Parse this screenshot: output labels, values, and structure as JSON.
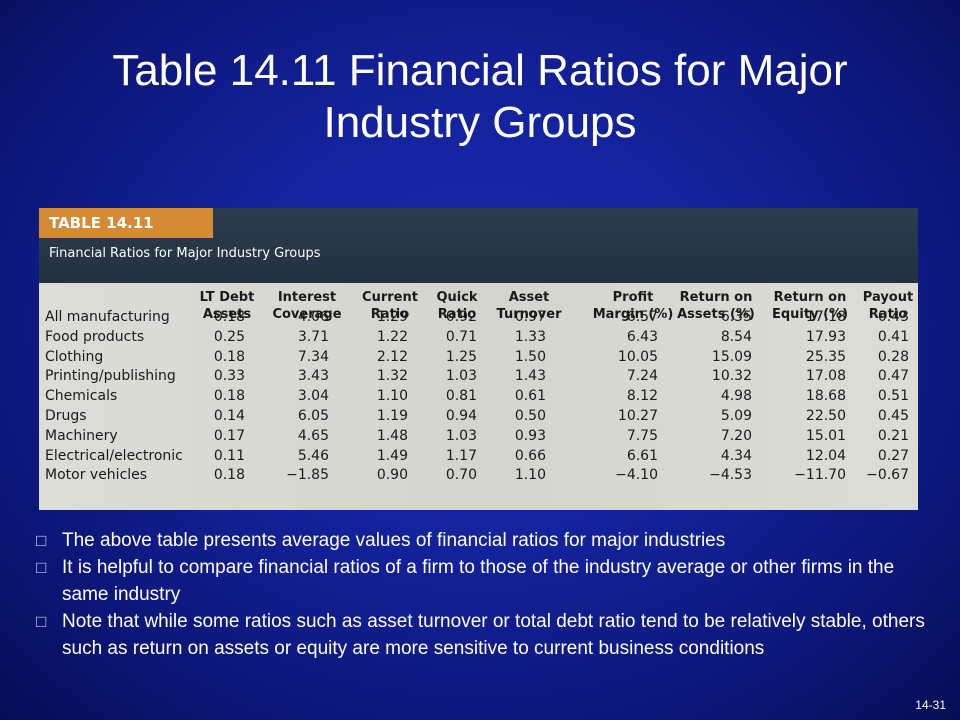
{
  "slide": {
    "title_line1": "Table 14.11 Financial Ratios for Major",
    "title_line2": "Industry Groups",
    "page_number": "14-31"
  },
  "table": {
    "label": "TABLE 14.11",
    "caption": "Financial Ratios for Major Industry Groups",
    "columns": [
      [
        "LT Debt",
        "Assets"
      ],
      [
        "Interest",
        "Coverage"
      ],
      [
        "Current",
        "Ratio"
      ],
      [
        "Quick",
        "Ratio"
      ],
      [
        "Asset",
        "Turnover"
      ],
      [
        "Profit",
        "Margin (%)"
      ],
      [
        "Return on",
        "Assets (%)"
      ],
      [
        "Return on",
        "Equity (%)"
      ],
      [
        "Payout",
        "Ratio"
      ]
    ],
    "rows": [
      {
        "industry": "All manufacturing",
        "values": [
          "0.18",
          "4.06",
          "1.29",
          "0.92",
          "0.97",
          "6.57",
          "6.35",
          "17.18",
          "0.43"
        ]
      },
      {
        "industry": "Food products",
        "values": [
          "0.25",
          "3.71",
          "1.22",
          "0.71",
          "1.33",
          "6.43",
          "8.54",
          "17.93",
          "0.41"
        ]
      },
      {
        "industry": "Clothing",
        "values": [
          "0.18",
          "7.34",
          "2.12",
          "1.25",
          "1.50",
          "10.05",
          "15.09",
          "25.35",
          "0.28"
        ]
      },
      {
        "industry": "Printing/publishing",
        "values": [
          "0.33",
          "3.43",
          "1.32",
          "1.03",
          "1.43",
          "7.24",
          "10.32",
          "17.08",
          "0.47"
        ]
      },
      {
        "industry": "Chemicals",
        "values": [
          "0.18",
          "3.04",
          "1.10",
          "0.81",
          "0.61",
          "8.12",
          "4.98",
          "18.68",
          "0.51"
        ]
      },
      {
        "industry": "Drugs",
        "values": [
          "0.14",
          "6.05",
          "1.19",
          "0.94",
          "0.50",
          "10.27",
          "5.09",
          "22.50",
          "0.45"
        ]
      },
      {
        "industry": "Machinery",
        "values": [
          "0.17",
          "4.65",
          "1.48",
          "1.03",
          "0.93",
          "7.75",
          "7.20",
          "15.01",
          "0.21"
        ]
      },
      {
        "industry": "Electrical/electronic",
        "values": [
          "0.11",
          "5.46",
          "1.49",
          "1.17",
          "0.66",
          "6.61",
          "4.34",
          "12.04",
          "0.27"
        ]
      },
      {
        "industry": "Motor vehicles",
        "values": [
          "0.18",
          "−1.85",
          "0.90",
          "0.70",
          "1.10",
          "−4.10",
          "−4.53",
          "−11.70",
          "−0.67"
        ]
      }
    ]
  },
  "bullets": [
    "The above table presents average values of financial ratios for major industries",
    "It is helpful to compare financial ratios of a firm to those of the industry average or other firms in the same industry",
    "Note that while some ratios such as asset turnover or total debt ratio tend to be relatively stable, others such as return on assets or equity are more sensitive to current business conditions"
  ]
}
